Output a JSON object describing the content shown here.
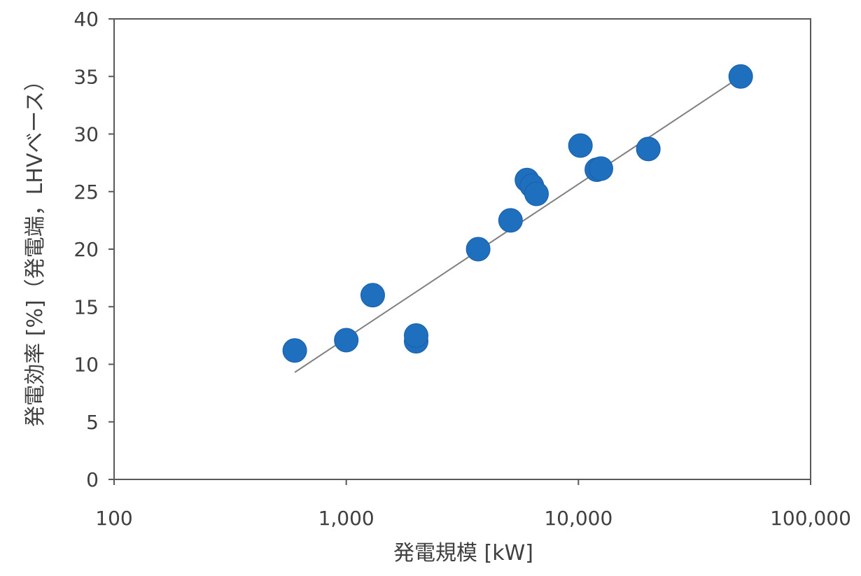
{
  "chart_data": {
    "type": "scatter",
    "title": "",
    "xlabel": "発電規模 [kW]",
    "ylabel": "発電効率 [%]（発電端，LHVベース）",
    "x_scale": "log",
    "xlim": [
      100,
      100000
    ],
    "ylim": [
      0,
      40
    ],
    "x_ticks": [
      100,
      1000,
      10000,
      100000
    ],
    "x_tick_labels": [
      "100",
      "1,000",
      "10,000",
      "100,000"
    ],
    "y_ticks": [
      0,
      5,
      10,
      15,
      20,
      25,
      30,
      35,
      40
    ],
    "y_tick_labels": [
      "0",
      "5",
      "10",
      "15",
      "20",
      "25",
      "30",
      "35",
      "40"
    ],
    "grid": false,
    "legend": "none",
    "series": [
      {
        "x": [
          600,
          1000,
          1300,
          2000,
          2000,
          3700,
          5100,
          6000,
          6300,
          6600,
          10200,
          12000,
          12500,
          20000,
          50000
        ],
        "y": [
          11.2,
          12.1,
          16.0,
          12.0,
          12.5,
          20.0,
          22.5,
          26.0,
          25.5,
          24.8,
          29.0,
          26.9,
          27.0,
          28.7,
          35.0
        ],
        "color": "#1f6fbf"
      }
    ],
    "trendline": {
      "x": [
        600,
        50000
      ],
      "y": [
        9.3,
        35.0
      ],
      "color": "#808080"
    }
  }
}
